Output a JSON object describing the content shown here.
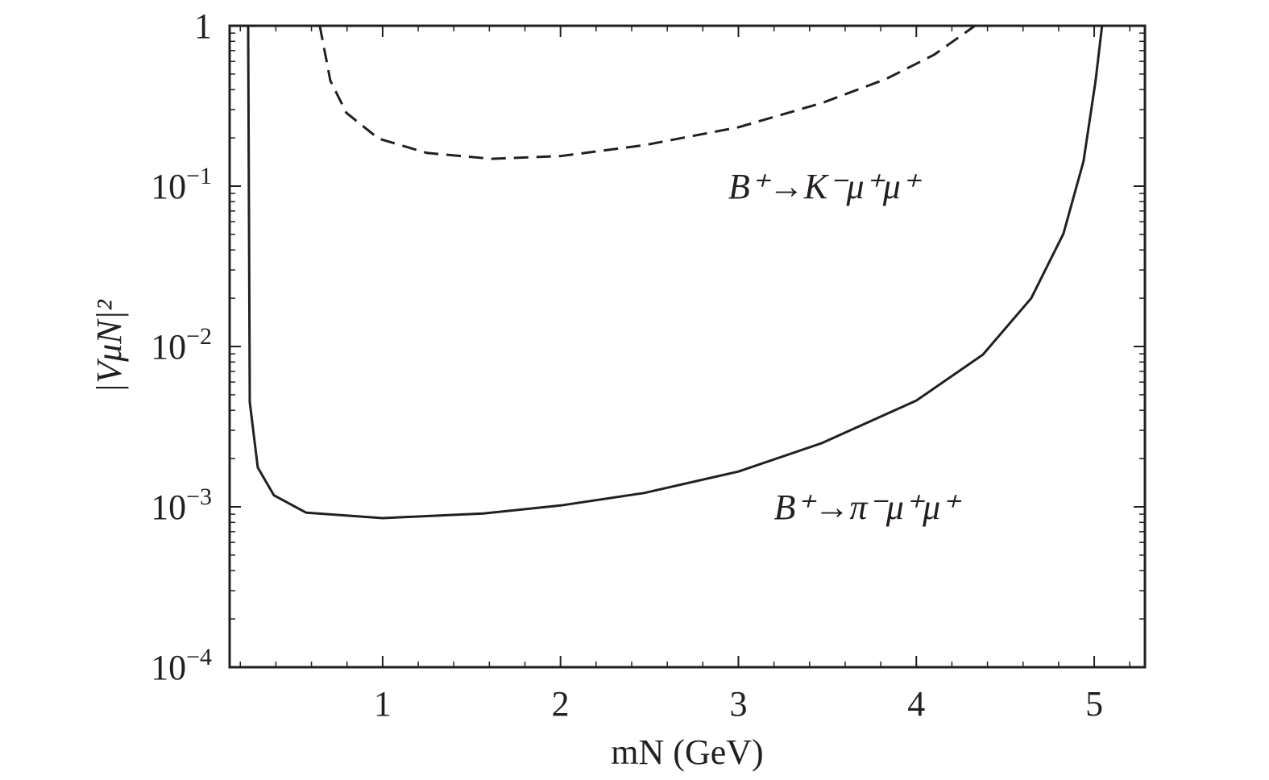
{
  "chart_data": {
    "type": "line",
    "xlabel": "mN (GeV)",
    "ylabel": "|VμN|²",
    "log_y": true,
    "xlim": [
      0.14,
      5.285
    ],
    "ylim": [
      0.0001,
      1
    ],
    "xticks": [
      1,
      2,
      3,
      4,
      5
    ],
    "yticks": [
      {
        "value": 0.0001,
        "label": "10−4"
      },
      {
        "value": 0.001,
        "label": "10−3"
      },
      {
        "value": 0.01,
        "label": "10−2"
      },
      {
        "value": 0.1,
        "label": "10−1"
      },
      1
    ],
    "series": [
      {
        "name": "B⁺→π⁻μ⁺μ⁺",
        "color": "#231f20",
        "dash": "solid",
        "x": [
          0.244,
          0.253,
          0.298,
          0.389,
          0.57,
          1,
          1.566,
          2,
          2.47,
          3,
          3.47,
          4,
          4.374,
          4.646,
          4.827,
          4.94,
          5.008,
          5.044
        ],
        "values": [
          1,
          0.0045,
          0.00176,
          0.00118,
          0.00092,
          0.00085,
          0.00091,
          0.00102,
          0.00122,
          0.00166,
          0.0025,
          0.0046,
          0.0089,
          0.02,
          0.0506,
          0.143,
          0.455,
          1
        ]
      },
      {
        "name": "B⁺→K⁻μ⁺μ⁺",
        "color": "#231f20",
        "dash": "dashed",
        "x": [
          0.647,
          0.706,
          0.796,
          0.977,
          1.249,
          1.611,
          2,
          2.47,
          3,
          3.47,
          3.83,
          4.1,
          4.33
        ],
        "values": [
          1,
          0.455,
          0.287,
          0.198,
          0.161,
          0.148,
          0.154,
          0.18,
          0.233,
          0.33,
          0.466,
          0.66,
          1
        ]
      }
    ],
    "annotations": [
      {
        "text": "B⁺→K⁻μ⁺μ⁺",
        "x": 3.48,
        "y": 0.1
      },
      {
        "text": "B⁺→π⁻μ⁺μ⁺",
        "x": 3.72,
        "y": 0.001
      }
    ]
  }
}
